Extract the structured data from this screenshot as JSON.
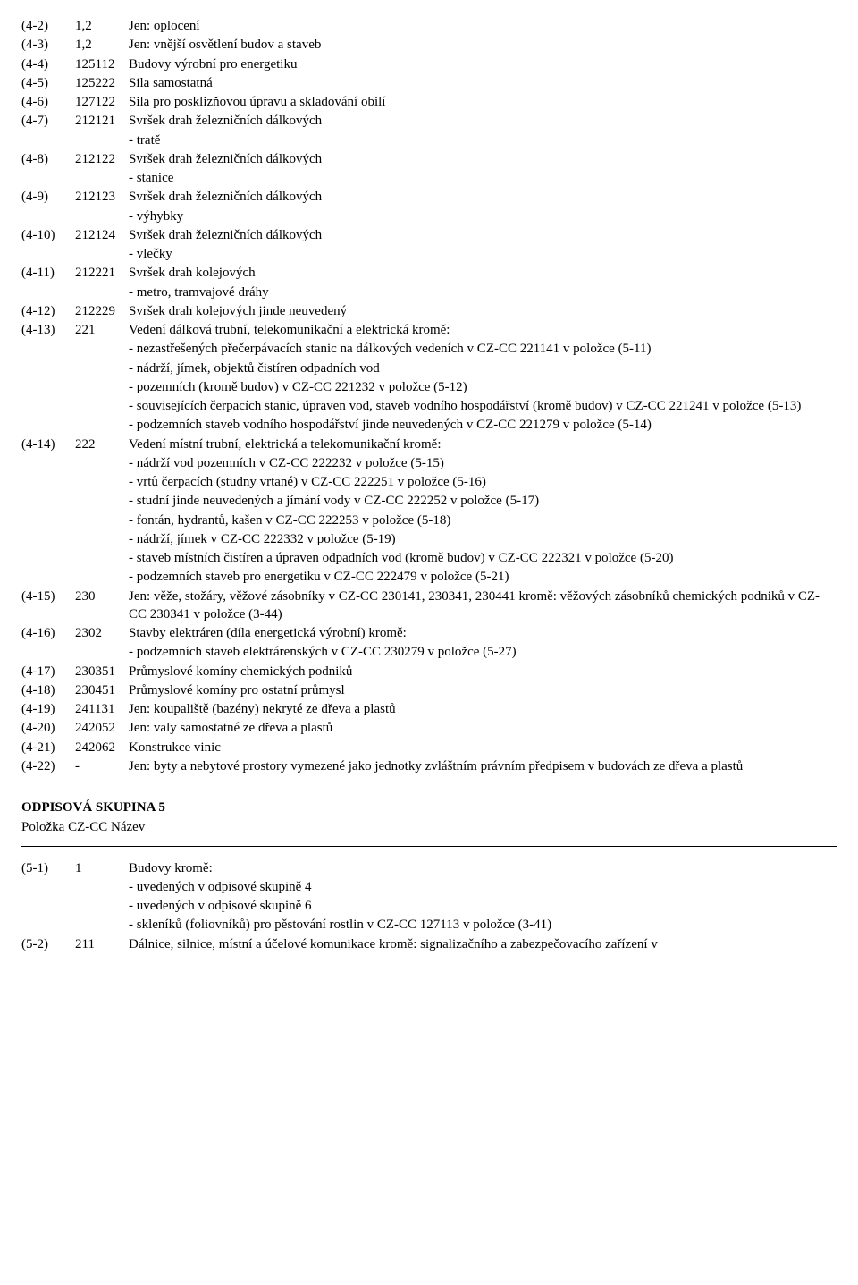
{
  "group4": [
    {
      "id": "(4-2)",
      "cc": "1,2",
      "lines": [
        "Jen: oplocení"
      ]
    },
    {
      "id": "(4-3)",
      "cc": "1,2",
      "lines": [
        "Jen: vnější osvětlení budov a staveb"
      ]
    },
    {
      "id": "(4-4)",
      "cc": "125112",
      "lines": [
        "Budovy výrobní pro energetiku"
      ]
    },
    {
      "id": "(4-5)",
      "cc": "125222",
      "lines": [
        "Sila samostatná"
      ]
    },
    {
      "id": "(4-6)",
      "cc": "127122",
      "lines": [
        "Sila pro posklizňovou úpravu a skladování obilí"
      ]
    },
    {
      "id": "(4-7)",
      "cc": "212121",
      "lines": [
        "Svršek drah železničních dálkových",
        "- tratě"
      ]
    },
    {
      "id": "(4-8)",
      "cc": "212122",
      "lines": [
        "Svršek drah železničních dálkových",
        "- stanice"
      ]
    },
    {
      "id": "(4-9)",
      "cc": "212123",
      "lines": [
        "Svršek drah železničních dálkových",
        "- výhybky"
      ]
    },
    {
      "id": "(4-10)",
      "cc": "212124",
      "lines": [
        "Svršek drah železničních dálkových",
        "- vlečky"
      ]
    },
    {
      "id": "(4-11)",
      "cc": "212221",
      "lines": [
        "Svršek drah kolejových",
        "- metro, tramvajové dráhy"
      ]
    },
    {
      "id": "(4-12)",
      "cc": "212229",
      "lines": [
        "Svršek drah kolejových jinde neuvedený"
      ]
    },
    {
      "id": "(4-13)",
      "cc": "221",
      "lines": [
        "Vedení dálková trubní, telekomunikační a elektrická kromě:",
        "- nezastřešených přečerpávacích stanic na dálkových vedeních v CZ-CC 221141 v položce (5-11)",
        "- nádrží, jímek, objektů čistíren odpadních vod",
        "- pozemních (kromě budov) v CZ-CC 221232 v položce (5-12)",
        "- souvisejících čerpacích stanic, úpraven vod, staveb vodního hospodářství (kromě budov) v CZ-CC 221241 v položce (5-13)",
        "- podzemních staveb vodního hospodářství jinde neuvedených v CZ-CC 221279 v položce (5-14)"
      ]
    },
    {
      "id": "(4-14)",
      "cc": "222",
      "lines": [
        "Vedení místní trubní, elektrická a telekomunikační kromě:",
        "- nádrží vod pozemních v CZ-CC 222232 v položce (5-15)",
        "- vrtů čerpacích (studny vrtané) v CZ-CC 222251 v položce (5-16)",
        "- studní jinde neuvedených a jímání vody v CZ-CC 222252 v položce (5-17)",
        "- fontán, hydrantů, kašen v CZ-CC 222253 v položce (5-18)",
        "- nádrží, jímek v CZ-CC 222332 v položce (5-19)",
        "- staveb místních čistíren a úpraven odpadních vod (kromě budov) v CZ-CC 222321 v položce (5-20)",
        "- podzemních staveb pro energetiku v CZ-CC 222479 v položce (5-21)"
      ]
    },
    {
      "id": "(4-15)",
      "cc": "230",
      "lines": [
        "Jen: věže, stožáry, věžové zásobníky v CZ-CC 230141, 230341, 230441 kromě: věžových zásobníků chemických podniků v CZ-CC 230341 v položce (3-44)"
      ]
    },
    {
      "id": "(4-16)",
      "cc": "2302",
      "lines": [
        "Stavby elektráren (díla energetická výrobní) kromě:",
        "- podzemních staveb elektrárenských v CZ-CC 230279 v položce (5-27)"
      ]
    },
    {
      "id": "(4-17)",
      "cc": "230351",
      "lines": [
        "Průmyslové komíny chemických podniků"
      ]
    },
    {
      "id": "(4-18)",
      "cc": "230451",
      "lines": [
        "Průmyslové komíny pro ostatní průmysl"
      ]
    },
    {
      "id": "(4-19)",
      "cc": "241131",
      "lines": [
        "Jen: koupaliště (bazény) nekryté ze dřeva a plastů"
      ]
    },
    {
      "id": "(4-20)",
      "cc": "242052",
      "lines": [
        "Jen: valy samostatné ze dřeva a plastů"
      ]
    },
    {
      "id": "(4-21)",
      "cc": "242062",
      "lines": [
        "Konstrukce vinic"
      ]
    },
    {
      "id": "(4-22)",
      "cc": "-",
      "lines": [
        "Jen: byty a nebytové prostory vymezené jako jednotky zvláštním právním předpisem v budovách ze dřeva a plastů"
      ]
    }
  ],
  "group5": {
    "heading": "ODPISOVÁ SKUPINA 5",
    "columns": "Položka  CZ-CC  Název",
    "rows": [
      {
        "id": "(5-1)",
        "cc": "1",
        "lines": [
          "Budovy kromě:",
          "- uvedených v odpisové skupině 4",
          "- uvedených v odpisové skupině 6",
          "- skleníků (foliovníků) pro pěstování rostlin v CZ-CC 127113 v položce (3-41)"
        ]
      },
      {
        "id": "(5-2)",
        "cc": "211",
        "lines": [
          "Dálnice, silnice, místní a účelové komunikace kromě: signalizačního a zabezpečovacího zařízení v"
        ]
      }
    ]
  }
}
